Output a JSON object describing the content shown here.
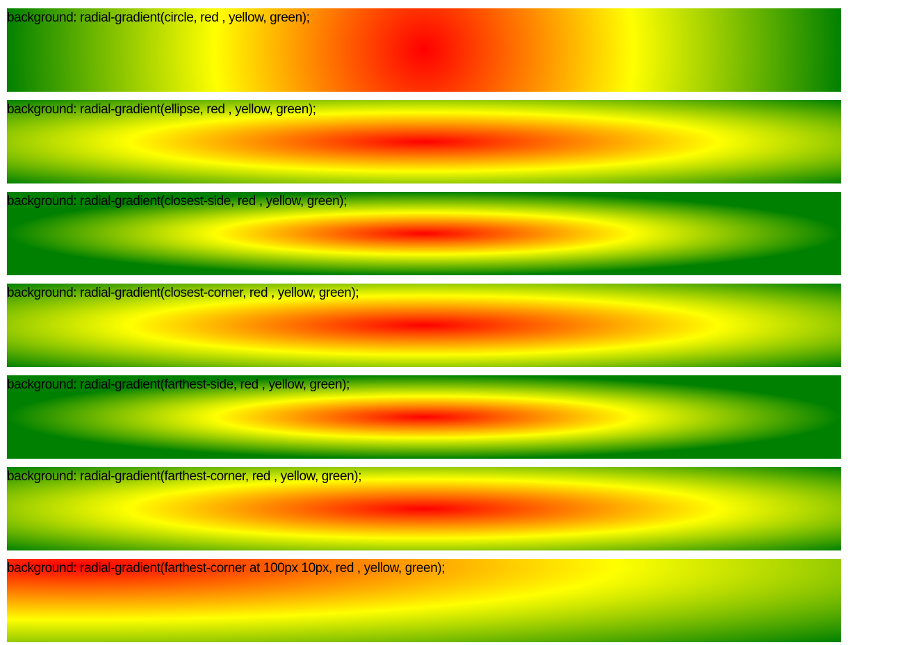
{
  "gradient_colors": [
    "red",
    "yellow",
    "green"
  ],
  "demos": [
    {
      "label": "background: radial-gradient(circle, red , yellow, green);"
    },
    {
      "label": "background: radial-gradient(ellipse, red , yellow, green);"
    },
    {
      "label": "background: radial-gradient(closest-side, red , yellow, green);"
    },
    {
      "label": "background: radial-gradient(closest-corner, red , yellow, green);"
    },
    {
      "label": "background: radial-gradient(farthest-side, red , yellow, green);"
    },
    {
      "label": "background: radial-gradient(farthest-corner, red , yellow, green);"
    },
    {
      "label": "background: radial-gradient(farthest-corner at 100px 10px, red , yellow, green);"
    }
  ]
}
